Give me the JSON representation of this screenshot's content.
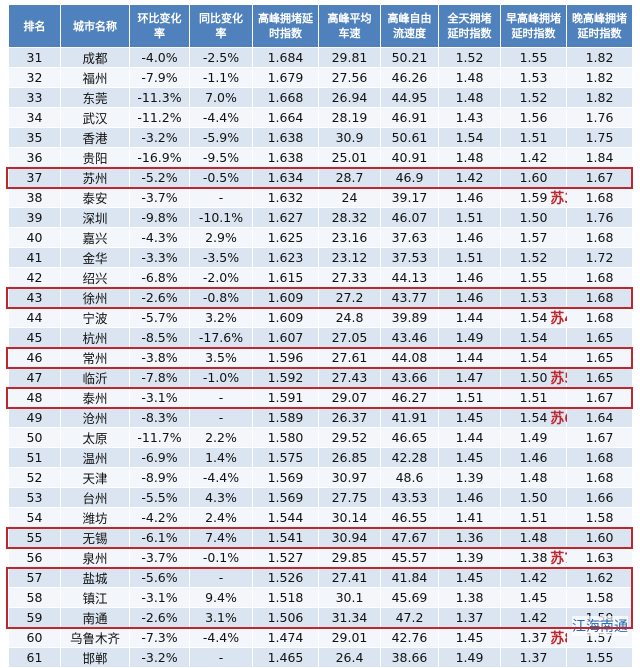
{
  "table": {
    "header": [
      "排名",
      "城市名称",
      "环比变化率",
      "同比变化率",
      "高峰拥堵延时指数",
      "高峰平均车速",
      "高峰自由流速度",
      "全天拥堵延时指数",
      "早高峰拥堵延时指数",
      "晚高峰拥堵延时指数"
    ],
    "rows": [
      {
        "cells": [
          "31",
          "成都",
          "-4.0%",
          "-2.5%",
          "1.684",
          "29.81",
          "50.21",
          "1.52",
          "1.55",
          "1.82"
        ]
      },
      {
        "cells": [
          "32",
          "福州",
          "-7.9%",
          "-1.1%",
          "1.679",
          "27.56",
          "46.26",
          "1.48",
          "1.53",
          "1.82"
        ]
      },
      {
        "cells": [
          "33",
          "东莞",
          "-11.3%",
          "7.0%",
          "1.668",
          "26.94",
          "44.95",
          "1.48",
          "1.52",
          "1.82"
        ]
      },
      {
        "cells": [
          "34",
          "武汉",
          "-11.2%",
          "-4.4%",
          "1.664",
          "28.19",
          "46.91",
          "1.43",
          "1.56",
          "1.76"
        ]
      },
      {
        "cells": [
          "35",
          "香港",
          "-3.2%",
          "-5.9%",
          "1.638",
          "30.9",
          "50.61",
          "1.54",
          "1.51",
          "1.75"
        ]
      },
      {
        "cells": [
          "36",
          "贵阳",
          "-16.9%",
          "-9.5%",
          "1.638",
          "25.01",
          "40.91",
          "1.48",
          "1.42",
          "1.84"
        ]
      },
      {
        "cells": [
          "37",
          "苏州",
          "-5.2%",
          "-0.5%",
          "1.634",
          "28.7",
          "46.9",
          "1.42",
          "1.60",
          "1.67"
        ]
      },
      {
        "cells": [
          "38",
          "泰安",
          "-3.7%",
          "-",
          "1.632",
          "24",
          "39.17",
          "1.46",
          "1.59",
          "1.68"
        ],
        "note": "苏3"
      },
      {
        "cells": [
          "39",
          "深圳",
          "-9.8%",
          "-10.1%",
          "1.627",
          "28.32",
          "46.07",
          "1.51",
          "1.50",
          "1.76"
        ]
      },
      {
        "cells": [
          "40",
          "嘉兴",
          "-4.3%",
          "2.9%",
          "1.625",
          "23.16",
          "37.63",
          "1.46",
          "1.57",
          "1.68"
        ]
      },
      {
        "cells": [
          "41",
          "金华",
          "-3.3%",
          "-3.5%",
          "1.623",
          "23.12",
          "37.53",
          "1.51",
          "1.52",
          "1.72"
        ]
      },
      {
        "cells": [
          "42",
          "绍兴",
          "-6.8%",
          "-2.0%",
          "1.615",
          "27.33",
          "44.13",
          "1.46",
          "1.55",
          "1.68"
        ]
      },
      {
        "cells": [
          "43",
          "徐州",
          "-2.6%",
          "-0.8%",
          "1.609",
          "27.2",
          "43.77",
          "1.46",
          "1.53",
          "1.68"
        ]
      },
      {
        "cells": [
          "44",
          "宁波",
          "-5.7%",
          "3.2%",
          "1.609",
          "24.8",
          "39.89",
          "1.44",
          "1.54",
          "1.68"
        ],
        "note": "苏4"
      },
      {
        "cells": [
          "45",
          "杭州",
          "-8.5%",
          "-17.6%",
          "1.607",
          "27.05",
          "43.46",
          "1.49",
          "1.54",
          "1.65"
        ]
      },
      {
        "cells": [
          "46",
          "常州",
          "-3.8%",
          "3.5%",
          "1.596",
          "27.61",
          "44.08",
          "1.44",
          "1.54",
          "1.65"
        ]
      },
      {
        "cells": [
          "47",
          "临沂",
          "-7.8%",
          "-1.0%",
          "1.592",
          "27.43",
          "43.66",
          "1.47",
          "1.50",
          "1.65"
        ],
        "note": "苏5"
      },
      {
        "cells": [
          "48",
          "泰州",
          "-3.1%",
          "-",
          "1.591",
          "29.07",
          "46.27",
          "1.51",
          "1.51",
          "1.67"
        ]
      },
      {
        "cells": [
          "49",
          "沧州",
          "-8.3%",
          "-",
          "1.589",
          "26.37",
          "41.91",
          "1.45",
          "1.54",
          "1.64"
        ],
        "note": "苏6"
      },
      {
        "cells": [
          "50",
          "太原",
          "-11.7%",
          "2.2%",
          "1.580",
          "29.52",
          "46.65",
          "1.44",
          "1.49",
          "1.67"
        ]
      },
      {
        "cells": [
          "51",
          "温州",
          "-6.9%",
          "1.4%",
          "1.575",
          "26.85",
          "42.28",
          "1.45",
          "1.46",
          "1.68"
        ]
      },
      {
        "cells": [
          "52",
          "天津",
          "-8.9%",
          "-4.4%",
          "1.569",
          "30.97",
          "48.6",
          "1.39",
          "1.48",
          "1.68"
        ]
      },
      {
        "cells": [
          "53",
          "台州",
          "-5.5%",
          "4.3%",
          "1.569",
          "27.75",
          "43.53",
          "1.46",
          "1.50",
          "1.66"
        ]
      },
      {
        "cells": [
          "54",
          "潍坊",
          "-4.2%",
          "2.4%",
          "1.544",
          "30.14",
          "46.55",
          "1.41",
          "1.51",
          "1.58"
        ]
      },
      {
        "cells": [
          "55",
          "无锡",
          "-6.1%",
          "7.4%",
          "1.541",
          "30.94",
          "47.67",
          "1.36",
          "1.48",
          "1.60"
        ]
      },
      {
        "cells": [
          "56",
          "泉州",
          "-3.7%",
          "-0.1%",
          "1.527",
          "29.85",
          "45.57",
          "1.39",
          "1.38",
          "1.63"
        ],
        "note": "苏7"
      },
      {
        "cells": [
          "57",
          "盐城",
          "-5.6%",
          "-",
          "1.526",
          "27.41",
          "41.84",
          "1.45",
          "1.42",
          "1.62"
        ]
      },
      {
        "cells": [
          "58",
          "镇江",
          "-3.1%",
          "9.4%",
          "1.518",
          "30.1",
          "45.69",
          "1.38",
          "1.45",
          "1.58"
        ]
      },
      {
        "cells": [
          "59",
          "南通",
          "-2.6%",
          "3.1%",
          "1.506",
          "31.34",
          "47.2",
          "1.37",
          "1.42",
          "1.59"
        ]
      },
      {
        "cells": [
          "60",
          "乌鲁木齐",
          "-7.3%",
          "-4.4%",
          "1.474",
          "29.01",
          "42.76",
          "1.45",
          "1.37",
          "1.57"
        ],
        "note": "苏8"
      },
      {
        "cells": [
          "61",
          "邯郸",
          "-3.2%",
          "-",
          "1.465",
          "26.4",
          "38.66",
          "1.49",
          "1.37",
          "1.55"
        ]
      }
    ]
  },
  "watermark": "江海南通"
}
